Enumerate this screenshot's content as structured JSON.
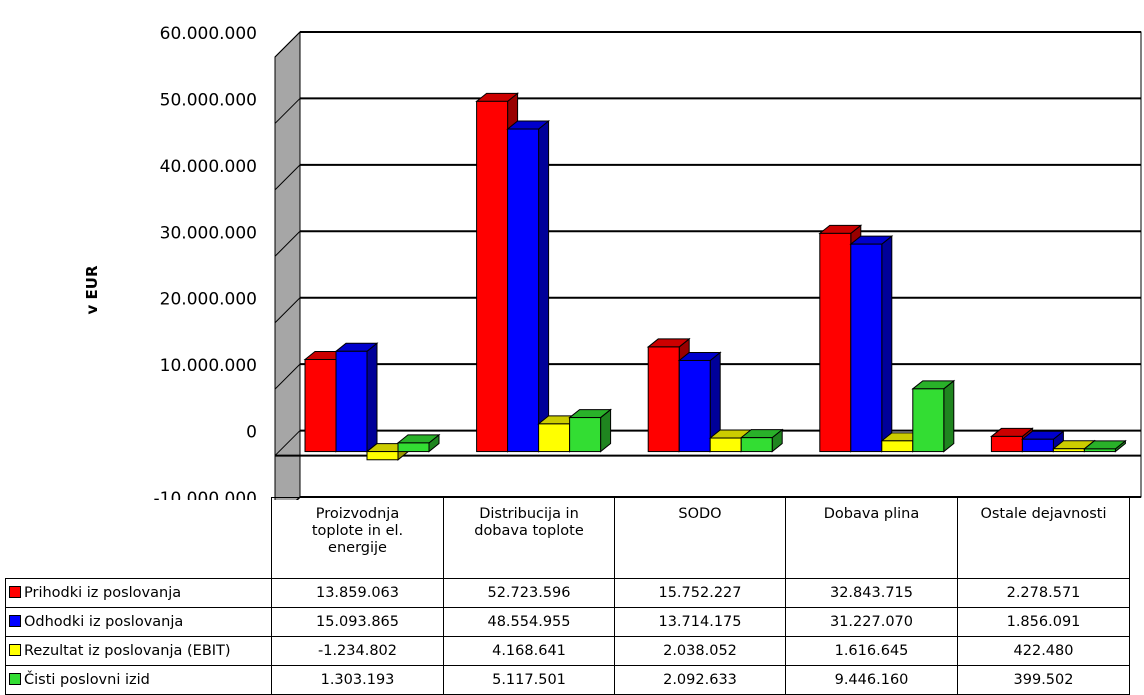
{
  "chart_data": {
    "type": "bar",
    "ylabel": "v EUR",
    "ylim": [
      -10000000,
      60000000
    ],
    "yticks": [
      -10000000,
      0,
      10000000,
      20000000,
      30000000,
      40000000,
      50000000,
      60000000
    ],
    "ytick_labels": [
      "-10.000.000",
      "0",
      "10.000.000",
      "20.000.000",
      "30.000.000",
      "40.000.000",
      "50.000.000",
      "60.000.000"
    ],
    "grid": true,
    "legend": "table-left",
    "categories": [
      "Proizvodnja toplote in el. energije",
      "Distribucija in dobava toplote",
      "SODO",
      "Dobava plina",
      "Ostale dejavnosti"
    ],
    "series": [
      {
        "name": "Prihodki iz poslovanja",
        "color": "#ff0000",
        "values": [
          13859063,
          52723596,
          15752227,
          32843715,
          2278571
        ],
        "labels": [
          "13.859.063",
          "52.723.596",
          "15.752.227",
          "32.843.715",
          "2.278.571"
        ]
      },
      {
        "name": "Odhodki iz poslovanja",
        "color": "#0000ff",
        "values": [
          15093865,
          48554955,
          13714175,
          31227070,
          1856091
        ],
        "labels": [
          "15.093.865",
          "48.554.955",
          "13.714.175",
          "31.227.070",
          "1.856.091"
        ]
      },
      {
        "name": "Rezultat iz poslovanja (EBIT)",
        "color": "#ffff00",
        "values": [
          -1234802,
          4168641,
          2038052,
          1616645,
          422480
        ],
        "labels": [
          "-1.234.802",
          "4.168.641",
          "2.038.052",
          "1.616.645",
          "422.480"
        ]
      },
      {
        "name": "Čisti poslovni izid",
        "color": "#33dd33",
        "values": [
          1303193,
          5117501,
          2092633,
          9446160,
          399502
        ],
        "labels": [
          "1.303.193",
          "5.117.501",
          "2.092.633",
          "9.446.160",
          "399.502"
        ]
      }
    ]
  }
}
